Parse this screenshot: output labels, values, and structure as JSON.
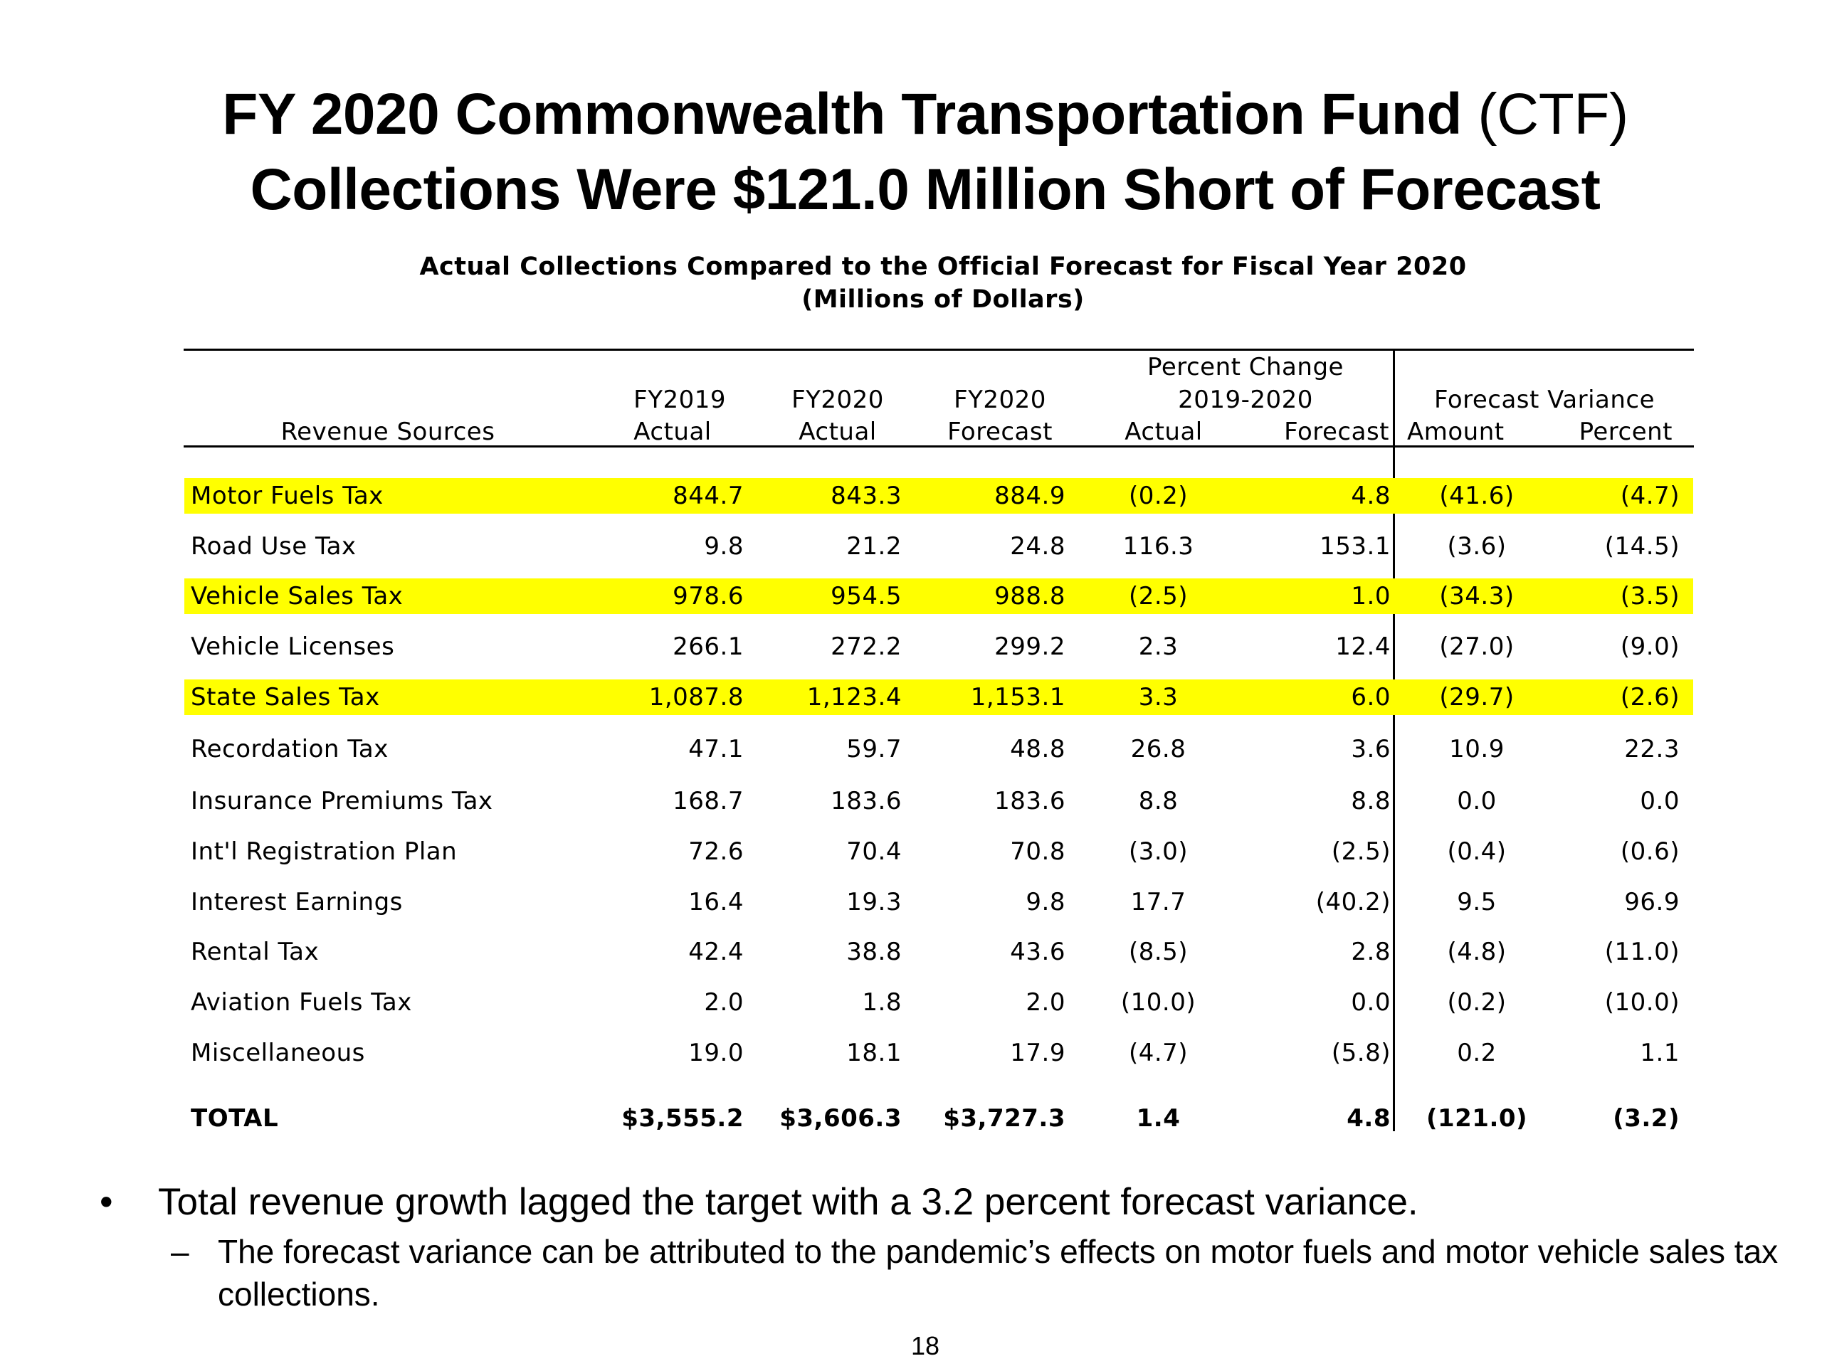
{
  "title": {
    "line1_bold": "FY 2020 Commonwealth Transportation Fund",
    "line1_normal": "(CTF)",
    "line2": "Collections Were $121.0 Million Short of Forecast"
  },
  "table": {
    "title_line1": "Actual Collections Compared to the Official Forecast for Fiscal Year 2020",
    "title_line2": "(Millions of Dollars)",
    "headers": {
      "revenue_sources": "Revenue Sources",
      "fy2019": [
        "FY2019",
        "Actual"
      ],
      "fy2020a": [
        "FY2020",
        "Actual"
      ],
      "fy2020f": [
        "FY2020",
        "Forecast"
      ],
      "pct_group": [
        "Percent Change",
        "2019-2020"
      ],
      "pct_actual": "Actual",
      "pct_forecast": "Forecast",
      "var_group": "Forecast Variance",
      "var_amount": "Amount",
      "var_percent": "Percent"
    },
    "rows": [
      {
        "name": "Motor Fuels Tax",
        "fy2019": "844.7",
        "fy2020a": "843.3",
        "fy2020f": "884.9",
        "pct_actual": "(0.2)",
        "pct_forecast": "4.8",
        "var_amount": "(41.6)",
        "var_percent": "(4.7)",
        "highlight": true
      },
      {
        "name": "Road Use Tax",
        "fy2019": "9.8",
        "fy2020a": "21.2",
        "fy2020f": "24.8",
        "pct_actual": "116.3",
        "pct_forecast": "153.1",
        "var_amount": "(3.6)",
        "var_percent": "(14.5)",
        "highlight": false
      },
      {
        "name": "Vehicle Sales Tax",
        "fy2019": "978.6",
        "fy2020a": "954.5",
        "fy2020f": "988.8",
        "pct_actual": "(2.5)",
        "pct_forecast": "1.0",
        "var_amount": "(34.3)",
        "var_percent": "(3.5)",
        "highlight": true
      },
      {
        "name": "Vehicle Licenses",
        "fy2019": "266.1",
        "fy2020a": "272.2",
        "fy2020f": "299.2",
        "pct_actual": "2.3",
        "pct_forecast": "12.4",
        "var_amount": "(27.0)",
        "var_percent": "(9.0)",
        "highlight": false
      },
      {
        "name": "State Sales Tax",
        "fy2019": "1,087.8",
        "fy2020a": "1,123.4",
        "fy2020f": "1,153.1",
        "pct_actual": "3.3",
        "pct_forecast": "6.0",
        "var_amount": "(29.7)",
        "var_percent": "(2.6)",
        "highlight": true
      },
      {
        "name": "Recordation Tax",
        "fy2019": "47.1",
        "fy2020a": "59.7",
        "fy2020f": "48.8",
        "pct_actual": "26.8",
        "pct_forecast": "3.6",
        "var_amount": "10.9",
        "var_percent": "22.3",
        "highlight": false
      },
      {
        "name": "Insurance Premiums Tax",
        "fy2019": "168.7",
        "fy2020a": "183.6",
        "fy2020f": "183.6",
        "pct_actual": "8.8",
        "pct_forecast": "8.8",
        "var_amount": "0.0",
        "var_percent": "0.0",
        "highlight": false
      },
      {
        "name": "Int'l Registration Plan",
        "fy2019": "72.6",
        "fy2020a": "70.4",
        "fy2020f": "70.8",
        "pct_actual": "(3.0)",
        "pct_forecast": "(2.5)",
        "var_amount": "(0.4)",
        "var_percent": "(0.6)",
        "highlight": false
      },
      {
        "name": "Interest Earnings",
        "fy2019": "16.4",
        "fy2020a": "19.3",
        "fy2020f": "9.8",
        "pct_actual": "17.7",
        "pct_forecast": "(40.2)",
        "var_amount": "9.5",
        "var_percent": "96.9",
        "highlight": false
      },
      {
        "name": "Rental Tax",
        "fy2019": "42.4",
        "fy2020a": "38.8",
        "fy2020f": "43.6",
        "pct_actual": "(8.5)",
        "pct_forecast": "2.8",
        "var_amount": "(4.8)",
        "var_percent": "(11.0)",
        "highlight": false
      },
      {
        "name": "Aviation Fuels Tax",
        "fy2019": "2.0",
        "fy2020a": "1.8",
        "fy2020f": "2.0",
        "pct_actual": "(10.0)",
        "pct_forecast": "0.0",
        "var_amount": "(0.2)",
        "var_percent": "(10.0)",
        "highlight": false
      },
      {
        "name": "Miscellaneous",
        "fy2019": "19.0",
        "fy2020a": "18.1",
        "fy2020f": "17.9",
        "pct_actual": "(4.7)",
        "pct_forecast": "(5.8)",
        "var_amount": "0.2",
        "var_percent": "1.1",
        "highlight": false
      }
    ],
    "total": {
      "name": "TOTAL",
      "fy2019": "$3,555.2",
      "fy2020a": "$3,606.3",
      "fy2020f": "$3,727.3",
      "pct_actual": "1.4",
      "pct_forecast": "4.8",
      "var_amount": "(121.0)",
      "var_percent": "(3.2)"
    },
    "highlight_color": "#ffff00"
  },
  "bullets": {
    "bullet_glyph": "•",
    "main": "Total revenue growth lagged the target with a 3.2 percent forecast variance.",
    "sub_glyph": "–",
    "sub": "The forecast variance can be attributed to the pandemic’s effects on motor fuels and motor vehicle sales tax collections."
  },
  "page_number": "18"
}
